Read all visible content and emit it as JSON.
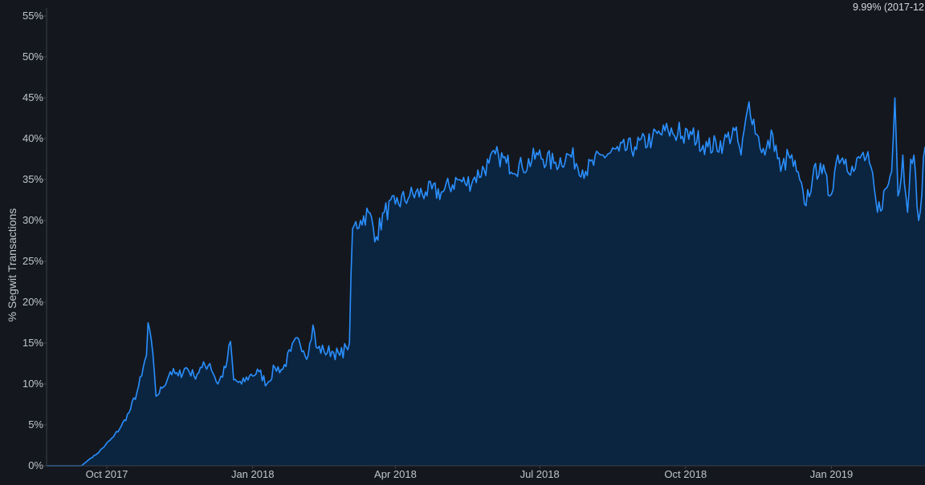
{
  "chart_data": {
    "type": "area",
    "ylabel": "% Segwit Transactions",
    "ylim": [
      0,
      55
    ],
    "yticks": [
      0,
      5,
      10,
      15,
      20,
      25,
      30,
      35,
      40,
      45,
      50,
      55
    ],
    "ytick_labels": [
      "0%",
      "5%",
      "10%",
      "15%",
      "20%",
      "25%",
      "30%",
      "35%",
      "40%",
      "45%",
      "50%",
      "55%"
    ],
    "xlim": [
      "2017-08-24",
      "2019-03-01"
    ],
    "xticks": [
      "2017-10-01",
      "2018-01-01",
      "2018-04-01",
      "2018-07-01",
      "2018-10-01",
      "2019-01-01"
    ],
    "xtick_labels": [
      "Oct 2017",
      "Jan 2018",
      "Apr 2018",
      "Jul 2018",
      "Oct 2018",
      "Jan 2019"
    ],
    "readout": "9.99% (2017-12",
    "grid": false,
    "colors": {
      "line": "#2a8fff",
      "fill": "#0b2540",
      "background": "#14181e"
    },
    "series": [
      {
        "x": [
          "2017-08-24",
          "2017-09-15",
          "2017-09-20",
          "2017-09-25",
          "2017-09-30",
          "2017-10-05",
          "2017-10-10",
          "2017-10-15",
          "2017-10-20",
          "2017-10-23",
          "2017-10-26",
          "2017-10-27",
          "2017-10-29",
          "2017-11-01",
          "2017-11-05",
          "2017-11-10",
          "2017-11-15",
          "2017-11-20",
          "2017-11-25",
          "2017-11-30",
          "2017-12-05",
          "2017-12-10",
          "2017-12-15",
          "2017-12-18",
          "2017-12-20",
          "2017-12-25",
          "2017-12-30",
          "2018-01-05",
          "2018-01-10",
          "2018-01-15",
          "2018-01-20",
          "2018-01-25",
          "2018-01-30",
          "2018-02-05",
          "2018-02-08",
          "2018-02-10",
          "2018-02-15",
          "2018-02-20",
          "2018-02-25",
          "2018-03-01",
          "2018-03-03",
          "2018-03-05",
          "2018-03-10",
          "2018-03-15",
          "2018-03-20",
          "2018-03-25",
          "2018-04-01",
          "2018-04-10",
          "2018-04-20",
          "2018-05-01",
          "2018-05-10",
          "2018-05-15",
          "2018-05-20",
          "2018-05-30",
          "2018-06-05",
          "2018-06-10",
          "2018-06-20",
          "2018-06-30",
          "2018-07-10",
          "2018-07-20",
          "2018-07-30",
          "2018-08-10",
          "2018-08-20",
          "2018-08-30",
          "2018-09-10",
          "2018-09-20",
          "2018-09-26",
          "2018-09-27",
          "2018-09-28",
          "2018-10-05",
          "2018-10-15",
          "2018-10-25",
          "2018-11-01",
          "2018-11-05",
          "2018-11-10",
          "2018-11-15",
          "2018-11-20",
          "2018-11-25",
          "2018-11-30",
          "2018-12-05",
          "2018-12-10",
          "2018-12-15",
          "2018-12-20",
          "2018-12-25",
          "2018-12-31",
          "2019-01-05",
          "2019-01-10",
          "2019-01-15",
          "2019-01-20",
          "2019-01-25",
          "2019-01-30",
          "2019-02-05",
          "2019-02-08",
          "2019-02-10",
          "2019-02-12",
          "2019-02-15",
          "2019-02-18",
          "2019-02-20",
          "2019-02-22",
          "2019-02-25",
          "2019-03-01"
        ],
        "y": [
          0,
          0,
          0.8,
          1.5,
          2.5,
          3.5,
          4.8,
          6.5,
          9,
          11,
          13.5,
          17.5,
          15.5,
          8.5,
          9.5,
          11.5,
          11,
          12,
          11,
          12,
          12.5,
          10,
          12,
          15.2,
          10.5,
          10,
          11,
          11.5,
          10,
          12,
          11.8,
          14,
          15.5,
          13.5,
          17.2,
          14.5,
          14,
          14,
          13.5,
          14.5,
          15,
          29,
          30,
          31,
          28,
          31,
          32,
          33,
          33.5,
          33.5,
          35,
          34.5,
          35,
          37,
          38,
          37,
          36.5,
          38,
          37,
          38,
          36,
          38,
          38.5,
          39,
          40,
          41,
          40.5,
          42,
          40,
          40.5,
          39,
          39.5,
          41,
          38,
          44.5,
          40.5,
          38,
          40.5,
          36,
          38,
          36,
          32,
          35,
          37,
          33,
          38,
          37.5,
          36,
          38,
          37,
          31,
          34,
          36,
          45,
          33,
          38,
          31,
          37.5,
          38,
          30,
          39
        ]
      }
    ]
  }
}
